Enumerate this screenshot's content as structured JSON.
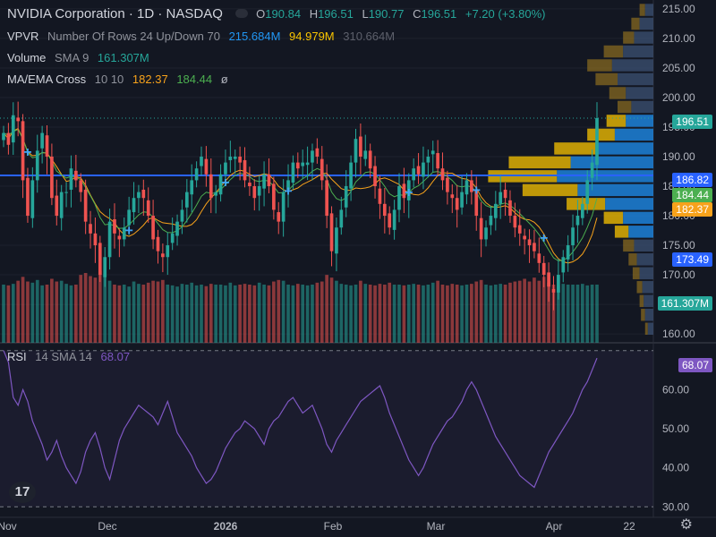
{
  "header": {
    "symbol": "NVIDIA Corporation · 1D · NASDAQ",
    "o_label": "O",
    "o_val": "190.84",
    "h_label": "H",
    "h_val": "196.51",
    "l_label": "L",
    "l_val": "190.77",
    "c_label": "C",
    "c_val": "196.51",
    "change": "+7.20 (+3.80%)"
  },
  "indicators": {
    "vpvr": {
      "name": "VPVR",
      "params": "Number Of Rows 24 Up/Down 70",
      "up": "215.684M",
      "down": "94.979M",
      "total": "310.664M"
    },
    "volume": {
      "name": "Volume",
      "params": "SMA 9",
      "value": "161.307M"
    },
    "ma": {
      "name": "MA/EMA Cross",
      "params": "10 10",
      "v1": "182.37",
      "v2": "184.44",
      "icon": "ø"
    },
    "rsi": {
      "name": "RSI",
      "params": "14 SMA 14",
      "value": "68.07"
    }
  },
  "price_tags": {
    "last": "196.51",
    "hline": "186.82",
    "ema": "184.44",
    "ma": "182.37",
    "poc": "173.49",
    "vol": "161.307M",
    "rsi": "68.07"
  },
  "colors": {
    "up": "#26a69a",
    "down": "#ef5350",
    "bg": "#131722",
    "rsi": "#7e57c2",
    "ma1": "#f7a21b",
    "ma2": "#4caf50",
    "hline": "#2962ff",
    "vp_up": "#1e88e5",
    "vp_down": "#f9c400",
    "vp_tail": "#8d6e1f"
  },
  "logo": "17",
  "chart_data": [
    {
      "type": "candlestick",
      "title": "NVIDIA Corporation · 1D · NASDAQ",
      "x_tick_labels": [
        "Nov",
        "Dec",
        "2026",
        "Feb",
        "Mar",
        "Apr",
        "22"
      ],
      "y_ticks": [
        160,
        165,
        170,
        175,
        180,
        185,
        190,
        195,
        200,
        205,
        210,
        215
      ],
      "ylim": [
        158.5,
        216.5
      ],
      "closes": [
        194,
        192,
        197,
        196,
        186,
        180,
        186,
        191,
        194,
        190,
        183,
        180,
        184,
        184,
        188,
        186,
        184,
        179,
        177,
        175,
        170,
        173,
        179,
        177,
        176,
        178,
        181,
        183,
        184,
        183,
        180,
        176,
        174,
        173,
        175,
        177,
        179,
        181,
        184,
        186,
        188,
        190,
        187,
        183,
        184,
        187,
        189,
        190,
        190,
        189,
        186,
        185,
        183,
        185,
        187,
        185,
        181,
        179,
        184,
        186,
        189,
        188,
        189,
        189,
        191,
        190,
        186,
        180,
        174,
        178,
        181,
        185,
        189,
        193,
        190,
        191,
        188,
        185,
        182,
        180,
        178,
        181,
        185,
        183,
        186,
        188,
        187,
        189,
        190,
        191,
        188,
        186,
        184,
        183,
        181,
        184,
        186,
        184,
        180,
        176,
        178,
        180,
        182,
        184,
        183,
        180,
        178,
        177,
        176,
        175,
        174,
        172,
        170,
        168,
        167,
        170,
        173,
        175,
        178,
        180,
        182,
        186,
        189,
        196.51
      ],
      "volume_millions": [
        150,
        148,
        152,
        160,
        170,
        158,
        155,
        162,
        148,
        150,
        165,
        158,
        160,
        152,
        148,
        150,
        175,
        180,
        172,
        168,
        185,
        178,
        160,
        150,
        148,
        150,
        145,
        158,
        152,
        150,
        155,
        160,
        158,
        162,
        150,
        148,
        145,
        152,
        150,
        155,
        148,
        150,
        146,
        152,
        150,
        150,
        148,
        155,
        148,
        150,
        152,
        150,
        148,
        155,
        150,
        148,
        158,
        162,
        160,
        150,
        148,
        152,
        150,
        148,
        150,
        155,
        158,
        175,
        168,
        160,
        152,
        150,
        148,
        150,
        160,
        152,
        150,
        148,
        152,
        150,
        155,
        150,
        150,
        148,
        150,
        152,
        150,
        148,
        150,
        155,
        160,
        150,
        148,
        152,
        150,
        148,
        150,
        152,
        158,
        162,
        150,
        148,
        150,
        152,
        150,
        155,
        158,
        160,
        165,
        158,
        168,
        160,
        170,
        155,
        150,
        148,
        152,
        150,
        150,
        150,
        152,
        148,
        150,
        150
      ],
      "volume_sma_9": "161.307M",
      "ma_ema_cross": {
        "ma10": 182.37,
        "ema10": 184.44
      },
      "horizontal_line": 186.82,
      "volume_profile": {
        "rows": 24,
        "poc_price": 173.49,
        "up_volume": "215.684M",
        "down_volume": "94.979M",
        "total_volume": "310.664M"
      }
    },
    {
      "type": "line",
      "title": "RSI 14 SMA 14",
      "y_ticks": [
        30,
        40,
        50,
        60,
        70
      ],
      "ylim": [
        28,
        72
      ],
      "last_value": 68.07,
      "values": [
        70,
        67,
        58,
        56,
        60,
        57,
        52,
        49,
        46,
        42,
        44,
        47,
        43,
        40,
        38,
        36,
        39,
        44,
        47,
        49,
        45,
        40,
        37,
        42,
        47,
        50,
        52,
        54,
        56,
        55,
        54,
        53,
        51,
        54,
        57,
        53,
        49,
        47,
        45,
        43,
        40,
        38,
        36,
        37,
        39,
        42,
        45,
        47,
        49,
        50,
        52,
        51,
        50,
        48,
        46,
        50,
        52,
        53,
        55,
        57,
        58,
        56,
        54,
        55,
        56,
        53,
        50,
        46,
        44,
        47,
        49,
        51,
        53,
        55,
        57,
        58,
        59,
        60,
        61,
        58,
        54,
        51,
        48,
        45,
        42,
        40,
        38,
        40,
        43,
        46,
        48,
        50,
        52,
        53,
        55,
        57,
        60,
        62,
        60,
        57,
        54,
        51,
        48,
        46,
        44,
        42,
        40,
        38,
        37,
        36,
        35,
        38,
        41,
        44,
        46,
        48,
        50,
        52,
        54,
        57,
        60,
        62,
        65,
        68.07
      ]
    }
  ]
}
